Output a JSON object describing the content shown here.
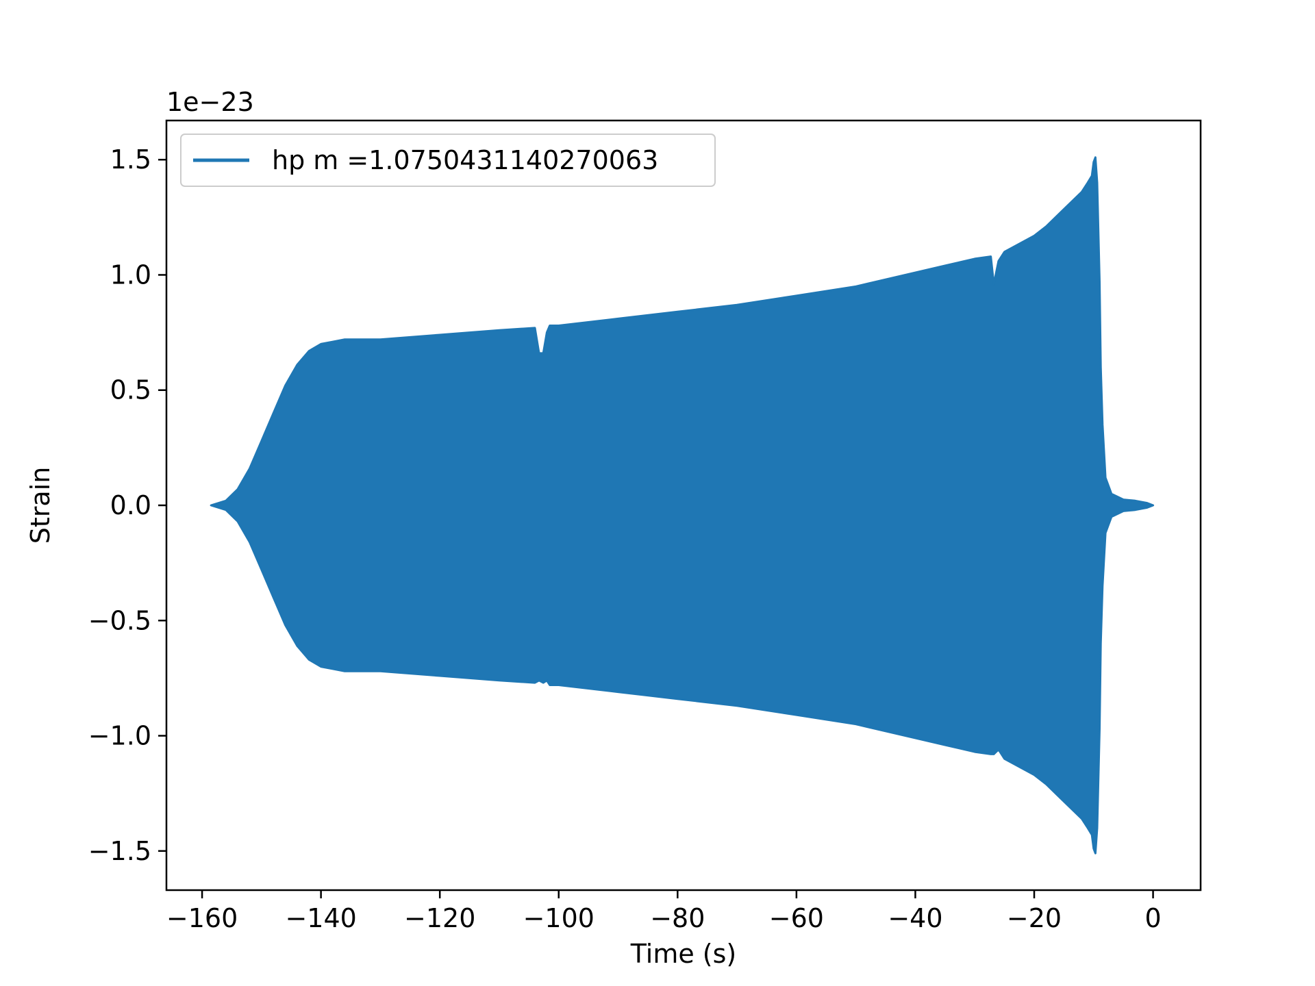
{
  "chart_data": {
    "type": "line",
    "title": "",
    "xlabel": "Time (s)",
    "ylabel": "Strain",
    "y_offset_label": "1e−23",
    "xlim": [
      -166,
      8
    ],
    "ylim": [
      -1.67,
      1.67
    ],
    "x_ticks": [
      -160,
      -140,
      -120,
      -100,
      -80,
      -60,
      -40,
      -20,
      0
    ],
    "x_tick_labels": [
      "−160",
      "−140",
      "−120",
      "−100",
      "−80",
      "−60",
      "−40",
      "−20",
      "0"
    ],
    "y_ticks": [
      -1.5,
      -1.0,
      -0.5,
      0.0,
      0.5,
      1.0,
      1.5
    ],
    "y_tick_labels": [
      "−1.5",
      "−1.0",
      "−0.5",
      "0.0",
      "0.5",
      "1.0",
      "1.5"
    ],
    "grid": false,
    "legend_position": "top-left",
    "series": [
      {
        "name": "hp m =1.0750431140270063",
        "color": "#1f77b4",
        "envelope_x": [
          -158.5,
          -156,
          -154,
          -152,
          -150,
          -148,
          -146,
          -144,
          -142,
          -140,
          -138,
          -136,
          -130,
          -120,
          -110,
          -104,
          -103.3,
          -102.6,
          -102,
          -101.5,
          -100,
          -90,
          -80,
          -70,
          -60,
          -50,
          -40,
          -35,
          -30,
          -27.3,
          -26.8,
          -26,
          -25,
          -20,
          -18,
          -16,
          -14,
          -12,
          -11,
          -10.3,
          -10,
          -9.7,
          -9.4,
          -9.0,
          -8.8,
          -8.5,
          -8.0,
          -7.0,
          -5.0,
          -3.0,
          -1.0,
          0.0
        ],
        "envelope_upper": [
          0.0,
          0.02,
          0.07,
          0.16,
          0.28,
          0.4,
          0.52,
          0.61,
          0.67,
          0.7,
          0.71,
          0.72,
          0.72,
          0.74,
          0.76,
          0.77,
          0.66,
          0.66,
          0.75,
          0.78,
          0.78,
          0.81,
          0.84,
          0.87,
          0.91,
          0.95,
          1.01,
          1.04,
          1.07,
          1.08,
          0.96,
          1.06,
          1.1,
          1.17,
          1.21,
          1.26,
          1.31,
          1.36,
          1.4,
          1.43,
          1.49,
          1.51,
          1.4,
          0.97,
          0.6,
          0.35,
          0.12,
          0.05,
          0.025,
          0.02,
          0.01,
          0.0
        ],
        "envelope_lower": [
          0.0,
          -0.02,
          -0.07,
          -0.16,
          -0.28,
          -0.4,
          -0.52,
          -0.61,
          -0.67,
          -0.7,
          -0.71,
          -0.72,
          -0.72,
          -0.74,
          -0.76,
          -0.77,
          -0.76,
          -0.77,
          -0.76,
          -0.78,
          -0.78,
          -0.81,
          -0.84,
          -0.87,
          -0.91,
          -0.95,
          -1.01,
          -1.04,
          -1.07,
          -1.08,
          -1.08,
          -1.06,
          -1.1,
          -1.17,
          -1.21,
          -1.26,
          -1.31,
          -1.36,
          -1.4,
          -1.43,
          -1.49,
          -1.51,
          -1.4,
          -0.97,
          -0.6,
          -0.35,
          -0.12,
          -0.05,
          -0.025,
          -0.02,
          -0.01,
          0.0
        ]
      }
    ]
  }
}
